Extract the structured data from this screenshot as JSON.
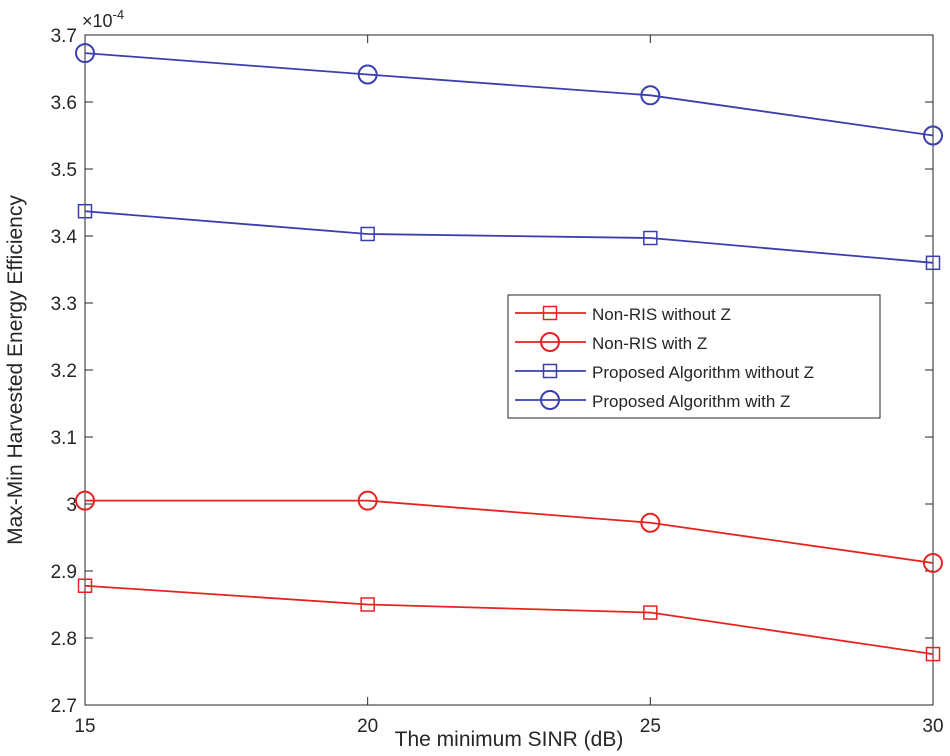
{
  "chart_data": {
    "type": "line",
    "xlabel": "The minimum SINR (dB)",
    "ylabel": "Max-Min Harvested Energy Efficiency",
    "y_exponent_label": "×10",
    "y_exponent_power": "-4",
    "xlim": [
      15,
      30
    ],
    "ylim": [
      2.7,
      3.7
    ],
    "x_ticks": [
      "15",
      "20",
      "25",
      "30"
    ],
    "y_ticks": [
      "2.7",
      "2.8",
      "2.9",
      "3",
      "3.1",
      "3.2",
      "3.3",
      "3.4",
      "3.5",
      "3.6",
      "3.7"
    ],
    "grid": false,
    "legend_position": "center-right",
    "x": [
      15,
      20,
      25,
      30
    ],
    "series": [
      {
        "name": "Non-RIS without Z",
        "color": "#e8221f",
        "marker": "square",
        "values": [
          2.878,
          2.85,
          2.838,
          2.776
        ]
      },
      {
        "name": "Non-RIS with Z",
        "color": "#e8221f",
        "marker": "circle",
        "values": [
          3.005,
          3.005,
          2.972,
          2.912
        ]
      },
      {
        "name": "Proposed Algorithm without Z",
        "color": "#3a3fb0",
        "marker": "square",
        "values": [
          3.437,
          3.403,
          3.397,
          3.36
        ]
      },
      {
        "name": "Proposed Algorithm with Z",
        "color": "#3a3fb0",
        "marker": "circle",
        "values": [
          3.673,
          3.641,
          3.61,
          3.55
        ]
      }
    ]
  }
}
